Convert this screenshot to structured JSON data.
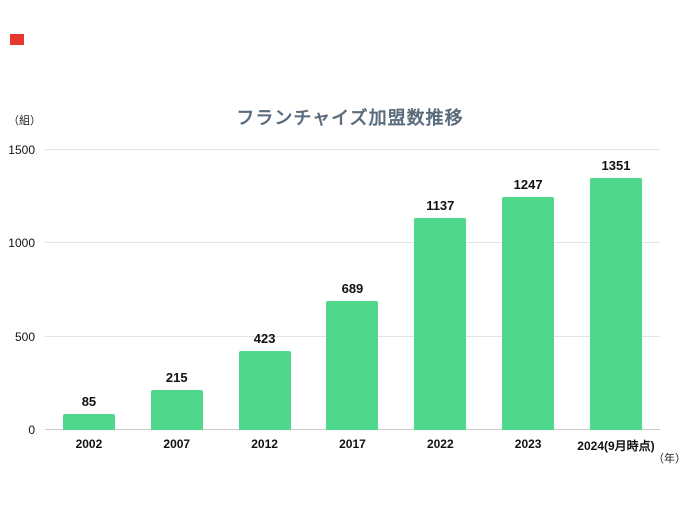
{
  "page": {
    "logo_mark_color": "#e8372c",
    "background": "#ffffff"
  },
  "chart_data": {
    "type": "bar",
    "title": "フランチャイズ加盟数推移",
    "title_color": "#5a6b7c",
    "categories": [
      "2002",
      "2007",
      "2012",
      "2017",
      "2022",
      "2023",
      "2024(9月時点)"
    ],
    "values": [
      85,
      215,
      423,
      689,
      1137,
      1247,
      1351
    ],
    "ylabel": "（組）",
    "xlabel": "（年）",
    "ylim": [
      0,
      1500
    ],
    "yticks": [
      0,
      500,
      1000,
      1500
    ],
    "bar_color": "#4fd78c",
    "grid": true,
    "legend": "none"
  }
}
